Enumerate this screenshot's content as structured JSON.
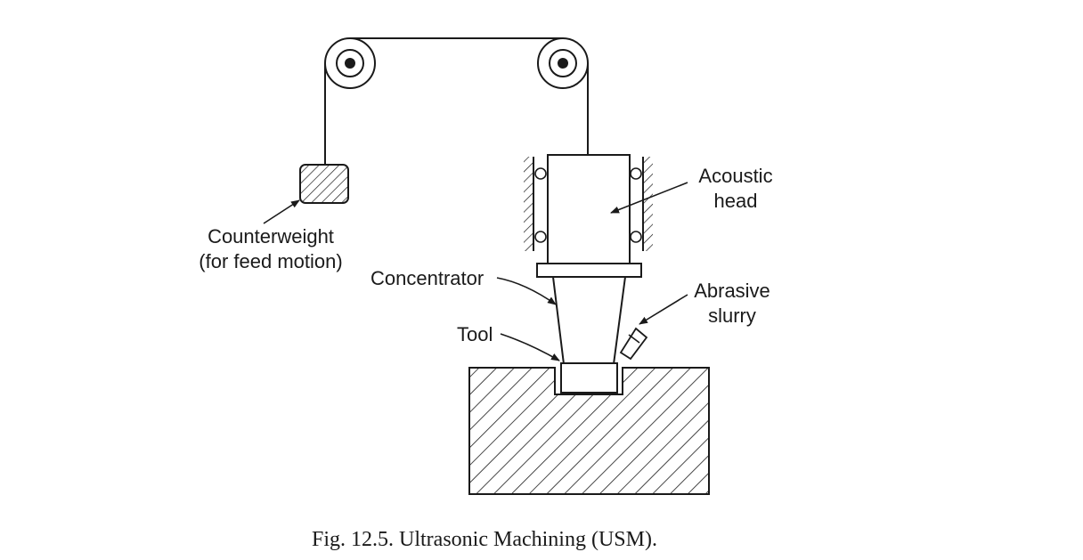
{
  "figure": {
    "caption": "Fig. 12.5. Ultrasonic Machining (USM).",
    "labels": {
      "counterweight_line1": "Counterweight",
      "counterweight_line2": "(for feed motion)",
      "acoustic_head_line1": "Acoustic",
      "acoustic_head_line2": "head",
      "concentrator": "Concentrator",
      "abrasive_slurry_line1": "Abrasive",
      "abrasive_slurry_line2": "slurry",
      "tool": "Tool"
    }
  },
  "colors": {
    "ink": "#1a1a1a",
    "background": "#ffffff"
  }
}
